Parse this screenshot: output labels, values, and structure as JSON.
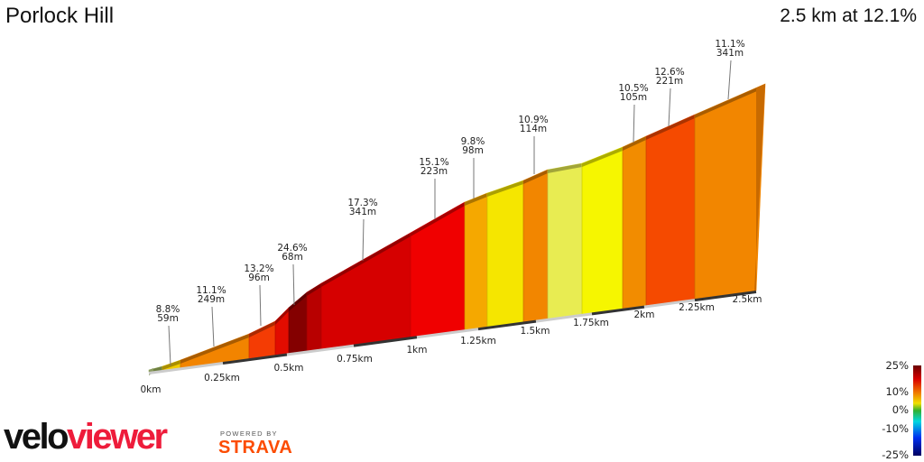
{
  "header": {
    "title": "Porlock Hill",
    "summary": "2.5 km at 12.1%"
  },
  "chart_data": {
    "type": "area",
    "title": "Porlock Hill",
    "subtitle": "2.5 km at 12.1%",
    "x_unit": "km",
    "x_ticks": [
      "0km",
      "0.25km",
      "0.5km",
      "0.75km",
      "1km",
      "1.25km",
      "1.5km",
      "1.75km",
      "2km",
      "2.25km",
      "2.5km"
    ],
    "segments": [
      {
        "color": "#9fb85e"
      },
      {
        "color": "#f2cc00"
      },
      {
        "color": "#f28400"
      },
      {
        "color": "#f43c04"
      },
      {
        "color": "#e20c00"
      },
      {
        "color": "#840000"
      },
      {
        "color": "#b80000"
      },
      {
        "color": "#d60000"
      },
      {
        "color": "#f00000"
      },
      {
        "color": "#f5a800"
      },
      {
        "color": "#f5e600"
      },
      {
        "color": "#f28600"
      },
      {
        "color": "#e8ec52"
      },
      {
        "color": "#f6f600"
      },
      {
        "color": "#f28c00"
      },
      {
        "color": "#f54a00"
      },
      {
        "color": "#f28600"
      }
    ],
    "annotations": [
      {
        "grade": "8.8%",
        "length": "59m"
      },
      {
        "grade": "11.1%",
        "length": "249m"
      },
      {
        "grade": "13.2%",
        "length": "96m"
      },
      {
        "grade": "24.6%",
        "length": "68m"
      },
      {
        "grade": "17.3%",
        "length": "341m"
      },
      {
        "grade": "15.1%",
        "length": "223m"
      },
      {
        "grade": "9.8%",
        "length": "98m"
      },
      {
        "grade": "10.9%",
        "length": "114m"
      },
      {
        "grade": "10.5%",
        "length": "105m"
      },
      {
        "grade": "12.6%",
        "length": "221m"
      },
      {
        "grade": "11.1%",
        "length": "341m"
      }
    ],
    "legend": {
      "labels": [
        "25%",
        "10%",
        "0%",
        "-10%",
        "-25%"
      ],
      "placement": "bottom-right",
      "range": [
        -25,
        25
      ]
    }
  },
  "branding": {
    "logo_left": "velo",
    "logo_right": "viewer",
    "powered": "POWERED BY",
    "strava": "STRAVA"
  }
}
